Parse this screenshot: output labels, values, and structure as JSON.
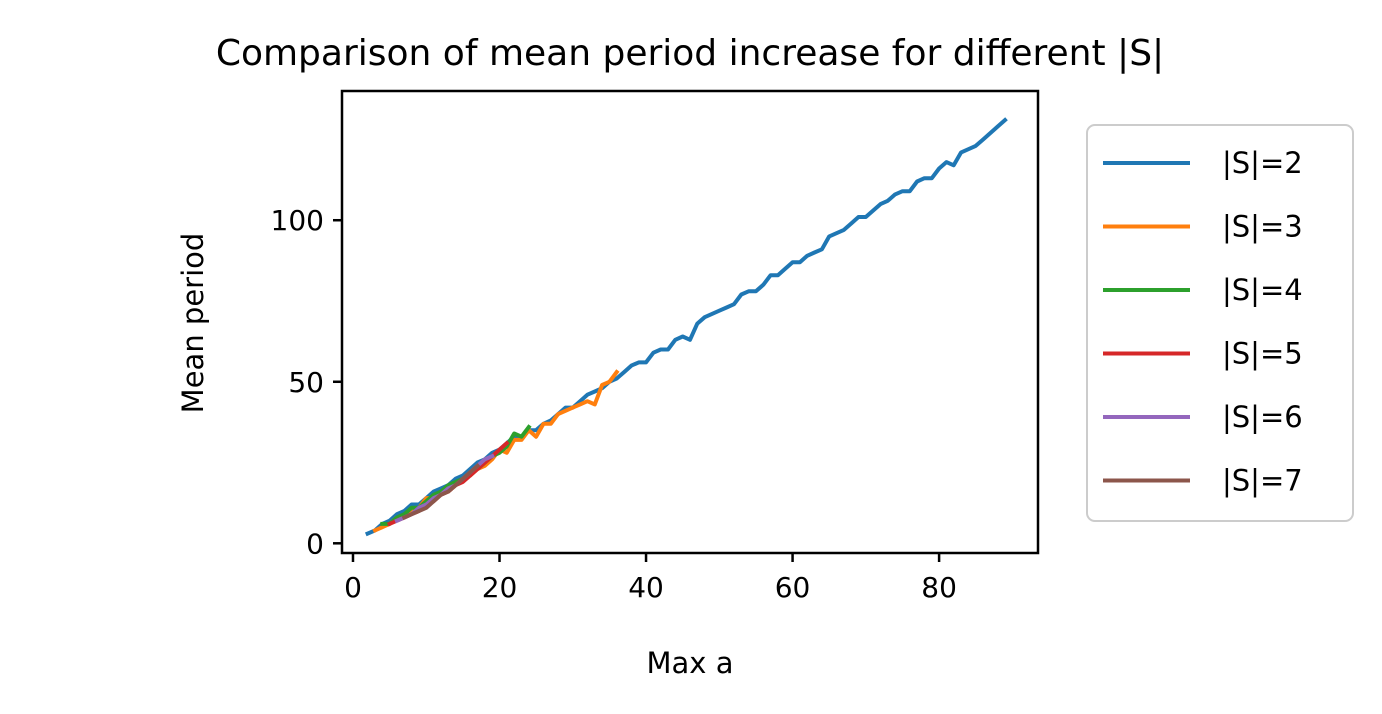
{
  "chart_data": {
    "type": "line",
    "title": "Comparison of mean period increase for different |S|",
    "xlabel": "Max a",
    "ylabel": "Mean period",
    "xlim": [
      -1.5,
      93.5
    ],
    "ylim": [
      -3,
      140
    ],
    "xticks": [
      0,
      20,
      40,
      60,
      80
    ],
    "yticks": [
      0,
      50,
      100
    ],
    "grid": false,
    "legend_placement": "right-outside-top",
    "series": [
      {
        "name": "|S|=2",
        "color": "#1f77b4",
        "x": [
          2,
          3,
          4,
          5,
          6,
          7,
          8,
          9,
          10,
          11,
          12,
          13,
          14,
          15,
          16,
          17,
          18,
          19,
          20,
          21,
          22,
          23,
          24,
          25,
          26,
          27,
          28,
          29,
          30,
          31,
          32,
          33,
          34,
          35,
          36,
          37,
          38,
          39,
          40,
          41,
          42,
          43,
          44,
          45,
          46,
          47,
          48,
          49,
          50,
          51,
          52,
          53,
          54,
          55,
          56,
          57,
          58,
          59,
          60,
          61,
          62,
          63,
          64,
          65,
          66,
          67,
          68,
          69,
          70,
          71,
          72,
          73,
          74,
          75,
          76,
          77,
          78,
          79,
          80,
          81,
          82,
          83,
          84,
          85,
          86,
          87,
          88,
          89
        ],
        "y": [
          3,
          4,
          6,
          7,
          9,
          10,
          12,
          12,
          14,
          16,
          17,
          18,
          20,
          21,
          23,
          25,
          26,
          28,
          29,
          31,
          33,
          33,
          35,
          35,
          37,
          38,
          40,
          42,
          42,
          44,
          46,
          47,
          48,
          50,
          51,
          53,
          55,
          56,
          56,
          59,
          60,
          60,
          63,
          64,
          63,
          68,
          70,
          71,
          72,
          73,
          74,
          77,
          78,
          78,
          80,
          83,
          83,
          85,
          87,
          87,
          89,
          90,
          91,
          95,
          96,
          97,
          99,
          101,
          101,
          103,
          105,
          106,
          108,
          109,
          109,
          112,
          113,
          113,
          116,
          118,
          117,
          121,
          122,
          123,
          125,
          127,
          129,
          131
        ]
      },
      {
        "name": "|S|=3",
        "color": "#ff7f0e",
        "x": [
          3,
          4,
          5,
          6,
          7,
          8,
          9,
          10,
          11,
          12,
          13,
          14,
          15,
          16,
          17,
          18,
          19,
          20,
          21,
          22,
          23,
          24,
          25,
          26,
          27,
          28,
          29,
          30,
          31,
          32,
          33,
          34,
          35,
          36
        ],
        "y": [
          4,
          5,
          6,
          8,
          8,
          10,
          11,
          14,
          14,
          16,
          16,
          18,
          20,
          21,
          23,
          24,
          26,
          29,
          28,
          32,
          32,
          35,
          33,
          37,
          37,
          40,
          41,
          42,
          43,
          44,
          43,
          49,
          50,
          53
        ]
      },
      {
        "name": "|S|=4",
        "color": "#2ca02c",
        "x": [
          4,
          5,
          6,
          7,
          8,
          9,
          10,
          11,
          12,
          13,
          14,
          15,
          16,
          17,
          18,
          19,
          20,
          21,
          22,
          23,
          24
        ],
        "y": [
          6,
          6,
          8,
          9,
          11,
          11,
          13,
          15,
          16,
          18,
          19,
          20,
          22,
          23,
          25,
          27,
          28,
          30,
          34,
          33,
          36
        ]
      },
      {
        "name": "|S|=5",
        "color": "#d62728",
        "x": [
          5,
          6,
          7,
          8,
          9,
          10,
          11,
          12,
          13,
          14,
          15,
          16,
          17,
          18,
          19,
          20,
          21
        ],
        "y": [
          6,
          7,
          8,
          9,
          10,
          12,
          13,
          15,
          16,
          18,
          19,
          21,
          23,
          25,
          27,
          29,
          31
        ]
      },
      {
        "name": "|S|=6",
        "color": "#9467bd",
        "x": [
          6,
          7,
          8,
          9,
          10,
          11,
          12,
          13,
          14,
          15,
          16,
          17,
          18,
          19
        ],
        "y": [
          7,
          8,
          9,
          11,
          12,
          14,
          15,
          17,
          18,
          20,
          22,
          24,
          26,
          27
        ]
      },
      {
        "name": "|S|=7",
        "color": "#8c564b",
        "x": [
          7,
          8,
          9,
          10,
          11,
          12,
          13,
          14,
          15,
          16,
          17
        ],
        "y": [
          8,
          9,
          10,
          11,
          13,
          15,
          16,
          18,
          20,
          22,
          24
        ]
      }
    ]
  }
}
